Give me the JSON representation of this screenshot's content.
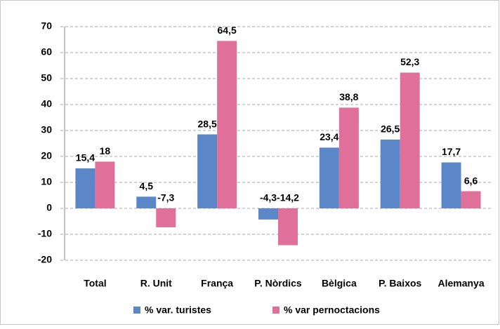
{
  "chart_data": {
    "type": "bar",
    "categories": [
      "Total",
      "R. Unit",
      "França",
      "P. Nòrdics",
      "Bèlgica",
      "P. Baixos",
      "Alemanya"
    ],
    "series": [
      {
        "name": "% var. turistes",
        "color": "#5b87c8",
        "values": [
          15.4,
          4.5,
          28.5,
          -4.3,
          23.4,
          26.5,
          17.7
        ],
        "value_labels": [
          "15,4",
          "4,5",
          "28,5",
          "-4,3",
          "23,4",
          "26,5",
          "17,7"
        ]
      },
      {
        "name": "% var pernoctacions",
        "color": "#e0709a",
        "values": [
          18,
          -7.3,
          64.5,
          -14.2,
          38.8,
          52.3,
          6.6
        ],
        "value_labels": [
          "18",
          "-7,3",
          "64,5",
          "-14,2",
          "38,8",
          "52,3",
          "6,6"
        ]
      }
    ],
    "ylim": [
      -20,
      70
    ],
    "yticks": [
      -20,
      -10,
      0,
      10,
      20,
      30,
      40,
      50,
      60,
      70
    ],
    "grid": true,
    "legend": "bottom"
  }
}
